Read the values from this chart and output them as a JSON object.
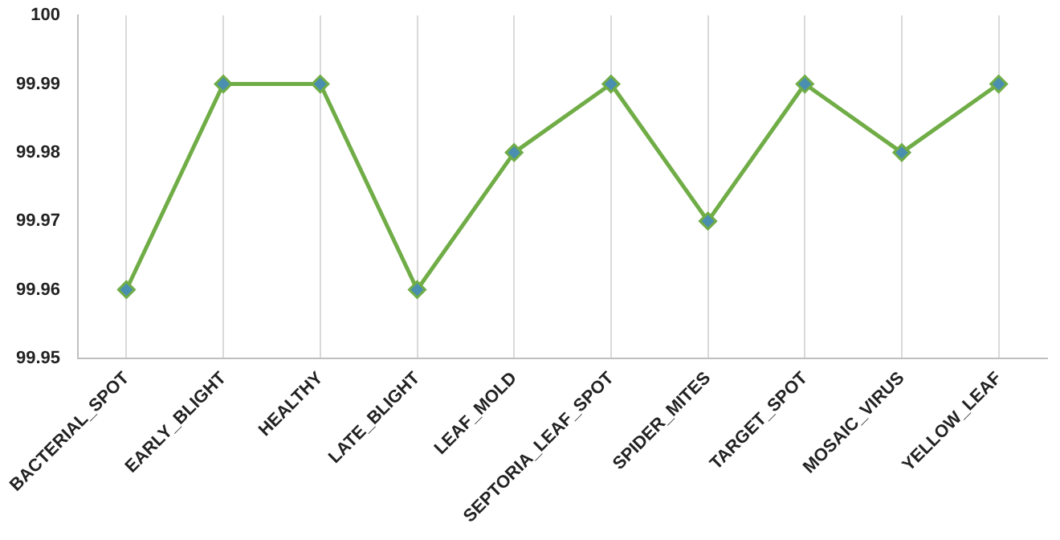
{
  "chart_data": {
    "type": "line",
    "categories": [
      "BACTERIAL_SPOT",
      "EARLY_BLIGHT",
      "HEALTHY",
      "LATE_BLIGHT",
      "LEAF_MOLD",
      "SEPTORIA_LEAF_SPOT",
      "SPIDER_MITES",
      "TARGET_SPOT",
      "MOSAIC_VIRUS",
      "YELLOW_LEAF"
    ],
    "series": [
      {
        "color": "#70ad47",
        "values": [
          99.96,
          99.99,
          99.99,
          99.96,
          99.98,
          99.99,
          99.97,
          99.99,
          99.98,
          99.99
        ]
      }
    ],
    "ylim": [
      99.95,
      100
    ],
    "yticks": [
      99.95,
      99.96,
      99.97,
      99.98,
      99.99,
      100
    ],
    "grid": "x",
    "legend": false,
    "marker": "diamond",
    "line_style": "solid"
  }
}
